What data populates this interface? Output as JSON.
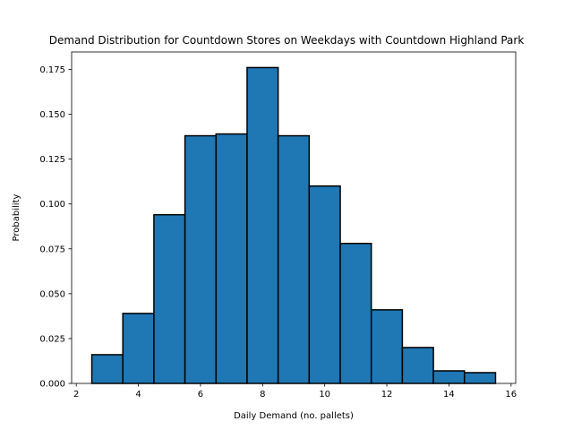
{
  "chart_data": {
    "type": "bar",
    "title": "Demand Distribution for Countdown Stores on Weekdays with Countdown Highland Park",
    "xlabel": "Daily Demand (no. pallets)",
    "ylabel": "Probability",
    "xlim": [
      1.85,
      16.15
    ],
    "ylim": [
      0,
      0.1847
    ],
    "bar_width": 1,
    "x": [
      3,
      4,
      5,
      6,
      7,
      8,
      9,
      10,
      11,
      12,
      13,
      14,
      15
    ],
    "values": [
      0.016,
      0.039,
      0.094,
      0.138,
      0.139,
      0.176,
      0.138,
      0.11,
      0.078,
      0.041,
      0.02,
      0.007,
      0.006
    ],
    "xticks": [
      2,
      4,
      6,
      8,
      10,
      12,
      14,
      16
    ],
    "xtick_labels": [
      "2",
      "4",
      "6",
      "8",
      "10",
      "12",
      "14",
      "16"
    ],
    "yticks": [
      0.0,
      0.025,
      0.05,
      0.075,
      0.1,
      0.125,
      0.15,
      0.175
    ],
    "ytick_labels": [
      "0.000",
      "0.025",
      "0.050",
      "0.075",
      "0.100",
      "0.125",
      "0.150",
      "0.175"
    ],
    "grid": false,
    "bar_color": "#1f77b4",
    "edge_color": "#000000"
  }
}
